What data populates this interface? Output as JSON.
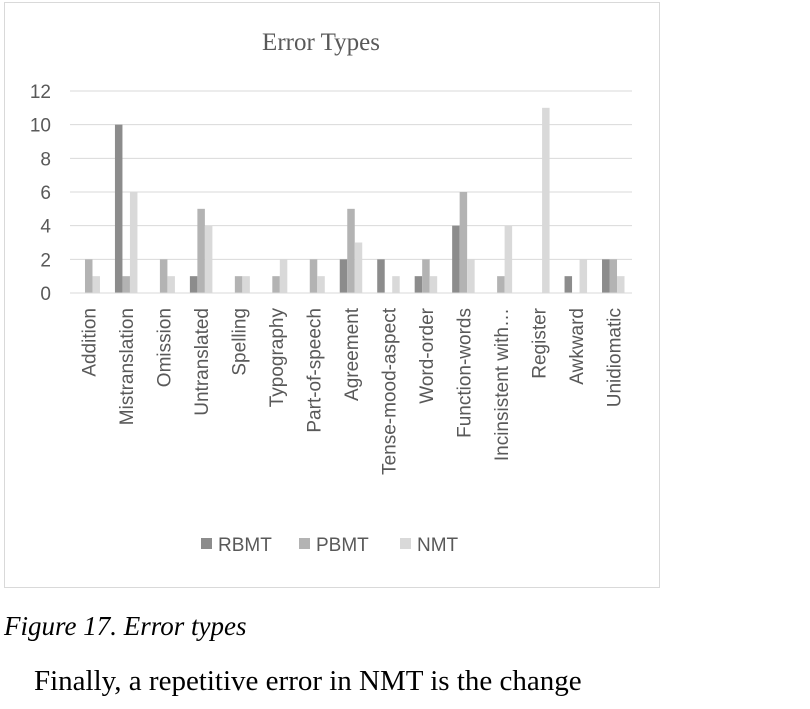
{
  "chart_data": {
    "type": "bar",
    "title": "Error Types",
    "categories": [
      "Addition",
      "Mistranslation",
      "Omission",
      "Untranslated",
      "Spelling",
      "Typography",
      "Part-of-speech",
      "Agreement",
      "Tense-mood-aspect",
      "Word-order",
      "Function-words",
      "Incinsistent with…",
      "Register",
      "Awkward",
      "Unidiomatic"
    ],
    "series": [
      {
        "name": "RBMT",
        "color": "#8c8c8c",
        "values": [
          0,
          10,
          0,
          1,
          0,
          0,
          0,
          2,
          2,
          1,
          4,
          0,
          0,
          1,
          2
        ]
      },
      {
        "name": "PBMT",
        "color": "#b3b3b3",
        "values": [
          2,
          1,
          2,
          5,
          1,
          1,
          2,
          5,
          0,
          2,
          6,
          1,
          0,
          0,
          2
        ]
      },
      {
        "name": "NMT",
        "color": "#d9d9d9",
        "values": [
          1,
          6,
          1,
          4,
          1,
          2,
          1,
          3,
          1,
          1,
          2,
          4,
          11,
          2,
          1
        ]
      }
    ],
    "yticks": [
      0,
      2,
      4,
      6,
      8,
      10,
      12
    ],
    "ylim": [
      0,
      12
    ],
    "grid": true,
    "legend_position": "bottom"
  },
  "figure": {
    "caption": "Figure 17. Error types"
  },
  "body_text": {
    "partial_line": "Finally, a repetitive error in NMT is the change"
  }
}
